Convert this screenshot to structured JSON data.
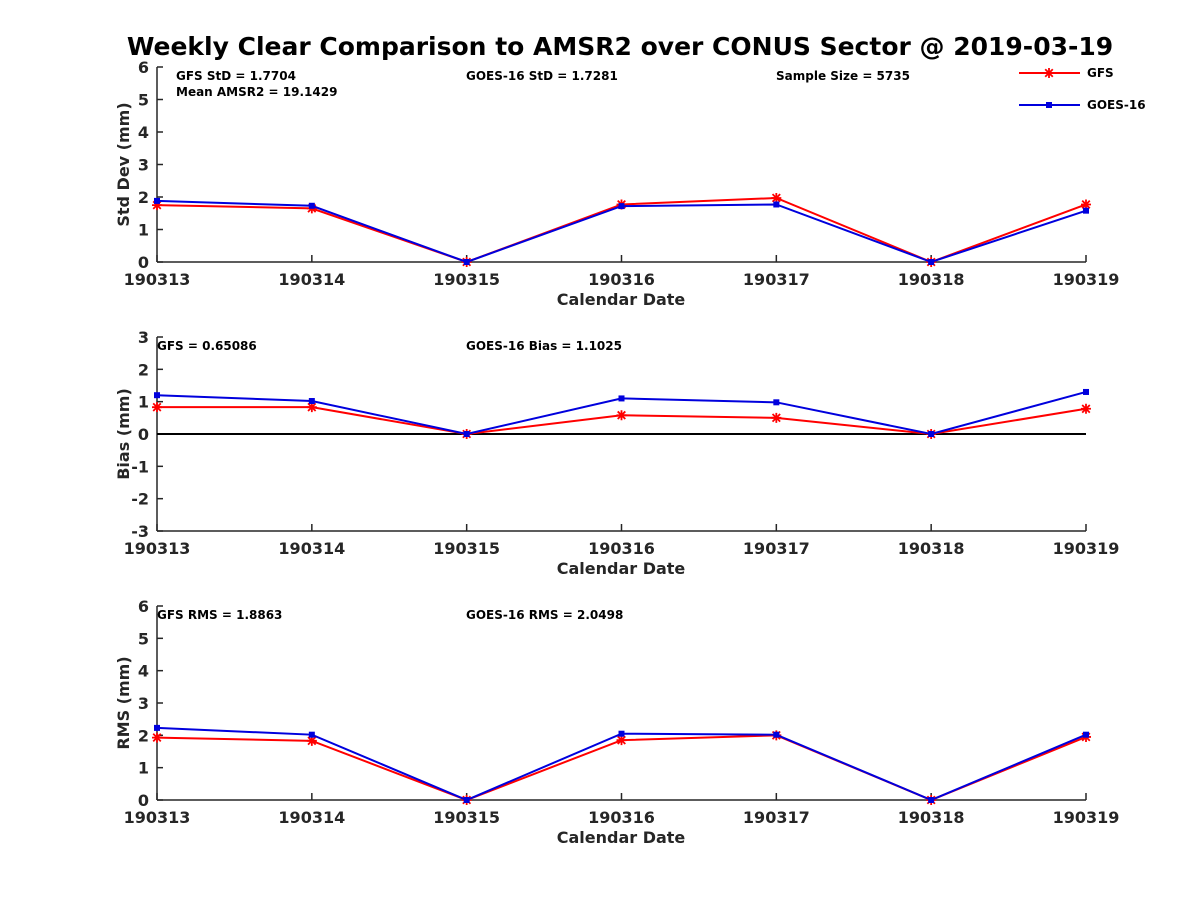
{
  "figure": {
    "title": "Weekly Clear Comparison to AMSR2 over CONUS Sector @ 2019-03-19"
  },
  "legend": {
    "position": "top-right",
    "entries": [
      {
        "name": "GFS",
        "color": "#ff0000",
        "marker": "asterisk"
      },
      {
        "name": "GOES-16",
        "color": "#0000dd",
        "marker": "square"
      }
    ]
  },
  "chart_data": [
    {
      "type": "line",
      "xlabel": "Calendar Date",
      "ylabel": "Std Dev (mm)",
      "categories": [
        "190313",
        "190314",
        "190315",
        "190316",
        "190317",
        "190318",
        "190319"
      ],
      "ylim": [
        0,
        6
      ],
      "yticks": [
        "0",
        "1",
        "2",
        "3",
        "4",
        "5",
        "6"
      ],
      "zero_line": false,
      "annotations": [
        {
          "text": "GFS StD = 1.7704"
        },
        {
          "text": "Mean AMSR2 = 19.1429"
        },
        {
          "text": "GOES-16 StD = 1.7281"
        },
        {
          "text": "Sample Size = 5735"
        }
      ],
      "series": [
        {
          "name": "GFS",
          "values": [
            1.75,
            1.65,
            0,
            1.77,
            1.97,
            0,
            1.77
          ]
        },
        {
          "name": "GOES-16",
          "values": [
            1.88,
            1.73,
            0,
            1.72,
            1.77,
            0,
            1.58
          ]
        }
      ]
    },
    {
      "type": "line",
      "xlabel": "Calendar Date",
      "ylabel": "Bias (mm)",
      "categories": [
        "190313",
        "190314",
        "190315",
        "190316",
        "190317",
        "190318",
        "190319"
      ],
      "ylim": [
        -3,
        3
      ],
      "yticks": [
        "-3",
        "-2",
        "-1",
        "0",
        "1",
        "2",
        "3"
      ],
      "zero_line": true,
      "annotations": [
        {
          "text": "GFS = 0.65086"
        },
        {
          "text": "GOES-16 Bias  = 1.1025"
        }
      ],
      "series": [
        {
          "name": "GFS",
          "values": [
            0.83,
            0.83,
            0,
            0.58,
            0.5,
            0,
            0.78
          ]
        },
        {
          "name": "GOES-16",
          "values": [
            1.2,
            1.02,
            0,
            1.1,
            0.98,
            0,
            1.3
          ]
        }
      ]
    },
    {
      "type": "line",
      "xlabel": "Calendar Date",
      "ylabel": "RMS (mm)",
      "categories": [
        "190313",
        "190314",
        "190315",
        "190316",
        "190317",
        "190318",
        "190319"
      ],
      "ylim": [
        0,
        6
      ],
      "yticks": [
        "0",
        "1",
        "2",
        "3",
        "4",
        "5",
        "6"
      ],
      "zero_line": false,
      "annotations": [
        {
          "text": "GFS RMS = 1.8863"
        },
        {
          "text": "GOES-16 RMS = 2.0498"
        }
      ],
      "series": [
        {
          "name": "GFS",
          "values": [
            1.93,
            1.83,
            0,
            1.85,
            2.0,
            0,
            1.95
          ]
        },
        {
          "name": "GOES-16",
          "values": [
            2.23,
            2.02,
            0,
            2.05,
            2.02,
            0,
            2.02
          ]
        }
      ]
    }
  ]
}
